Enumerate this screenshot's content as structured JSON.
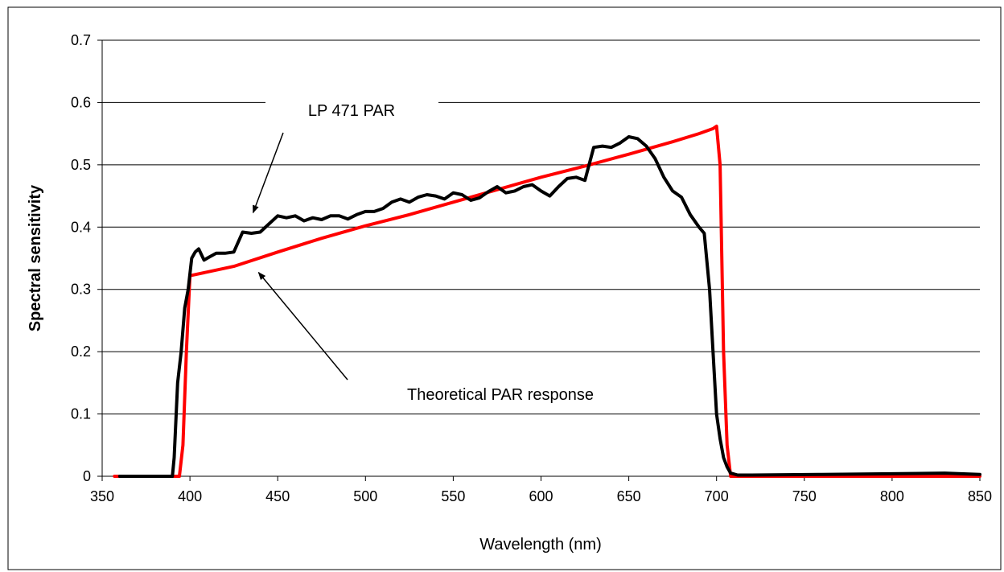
{
  "chart_data": {
    "type": "line",
    "title": "",
    "xlabel": "Wavelength (nm)",
    "ylabel": "Spectral sensitivity",
    "xlim": [
      350,
      850
    ],
    "ylim": [
      0,
      0.7
    ],
    "x_ticks": [
      350,
      400,
      450,
      500,
      550,
      600,
      650,
      700,
      750,
      800,
      850
    ],
    "y_ticks": [
      0,
      0.1,
      0.2,
      0.3,
      0.4,
      0.5,
      0.6,
      0.7
    ],
    "grid": "horizontal",
    "legend": "none",
    "series": [
      {
        "name": "Theoretical PAR response",
        "color": "#ff0000",
        "x": [
          357,
          394,
          396,
          398,
          400,
          425,
          450,
          475,
          500,
          525,
          550,
          575,
          600,
          625,
          650,
          675,
          690,
          698,
          700,
          702,
          704,
          706,
          708,
          850
        ],
        "y": [
          0,
          0,
          0.05,
          0.2,
          0.322,
          0.337,
          0.36,
          0.382,
          0.402,
          0.42,
          0.44,
          0.46,
          0.48,
          0.498,
          0.517,
          0.537,
          0.55,
          0.558,
          0.562,
          0.5,
          0.2,
          0.05,
          0,
          0
        ]
      },
      {
        "name": "LP 471 PAR",
        "color": "#000000",
        "x": [
          360,
          390,
          391,
          393,
          395,
          397,
          399,
          401,
          403,
          405,
          408,
          411,
          415,
          420,
          425,
          430,
          435,
          440,
          445,
          450,
          455,
          460,
          465,
          470,
          475,
          480,
          485,
          490,
          495,
          500,
          505,
          510,
          515,
          520,
          525,
          530,
          535,
          540,
          545,
          550,
          555,
          560,
          565,
          570,
          575,
          580,
          585,
          590,
          595,
          600,
          605,
          610,
          615,
          620,
          625,
          630,
          635,
          640,
          645,
          650,
          655,
          660,
          665,
          670,
          675,
          680,
          685,
          690,
          693,
          696,
          698,
          700,
          702,
          704,
          706,
          708,
          712,
          720,
          760,
          800,
          830,
          850
        ],
        "y": [
          0,
          0,
          0.03,
          0.15,
          0.2,
          0.27,
          0.3,
          0.35,
          0.36,
          0.365,
          0.347,
          0.352,
          0.358,
          0.358,
          0.36,
          0.392,
          0.39,
          0.392,
          0.405,
          0.418,
          0.415,
          0.418,
          0.41,
          0.415,
          0.412,
          0.418,
          0.418,
          0.413,
          0.42,
          0.425,
          0.425,
          0.43,
          0.44,
          0.445,
          0.44,
          0.448,
          0.452,
          0.45,
          0.445,
          0.455,
          0.452,
          0.443,
          0.447,
          0.457,
          0.465,
          0.455,
          0.458,
          0.465,
          0.468,
          0.458,
          0.45,
          0.465,
          0.478,
          0.48,
          0.475,
          0.528,
          0.53,
          0.528,
          0.535,
          0.545,
          0.542,
          0.53,
          0.51,
          0.48,
          0.458,
          0.448,
          0.42,
          0.4,
          0.39,
          0.3,
          0.2,
          0.1,
          0.06,
          0.03,
          0.015,
          0.005,
          0.002,
          0.002,
          0.003,
          0.004,
          0.005,
          0.003
        ]
      }
    ],
    "annotations": [
      {
        "text": "LP 471 PAR",
        "target_series": "LP 471 PAR",
        "target_x": 436,
        "target_y": 0.418
      },
      {
        "text": "Theoretical  PAR response",
        "target_series": "Theoretical PAR response",
        "target_x": 440,
        "target_y": 0.335
      }
    ]
  }
}
